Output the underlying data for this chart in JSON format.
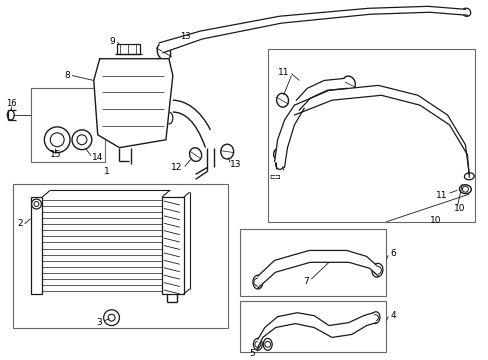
{
  "background_color": "#ffffff",
  "line_color": "#1a1a1a",
  "box_color": "#666666",
  "figsize": [
    4.89,
    3.6
  ],
  "dpi": 100
}
